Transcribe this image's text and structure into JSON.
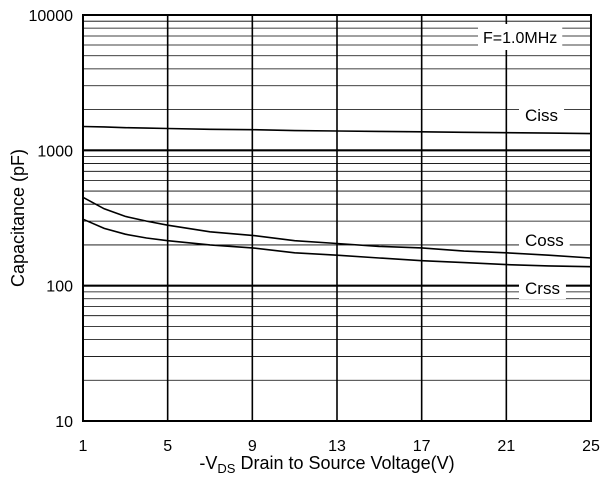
{
  "chart_data": {
    "type": "line",
    "xlabel_prefix": "-V",
    "xlabel_subscript": "DS",
    "xlabel_rest": " Drain to Source Voltage(V)",
    "ylabel": "Capacitance (pF)",
    "annotation": "F=1.0MHz",
    "x_scale": "linear",
    "y_scale": "log",
    "xlim": [
      1,
      25
    ],
    "ylim": [
      10,
      10000
    ],
    "x_ticks": [
      1,
      5,
      9,
      13,
      17,
      21,
      25
    ],
    "y_ticks": [
      10,
      100,
      1000,
      10000
    ],
    "grid": true,
    "series": [
      {
        "name": "Ciss",
        "x": [
          1,
          2,
          3,
          4,
          5,
          7,
          9,
          11,
          13,
          15,
          17,
          19,
          21,
          23,
          25
        ],
        "values": [
          1500,
          1490,
          1470,
          1460,
          1450,
          1430,
          1420,
          1400,
          1390,
          1380,
          1370,
          1360,
          1350,
          1340,
          1330
        ]
      },
      {
        "name": "Coss",
        "x": [
          1,
          2,
          3,
          4,
          5,
          7,
          9,
          11,
          13,
          15,
          17,
          19,
          21,
          23,
          25
        ],
        "values": [
          450,
          370,
          325,
          300,
          280,
          250,
          235,
          215,
          205,
          195,
          190,
          180,
          175,
          168,
          160
        ]
      },
      {
        "name": "Crss",
        "x": [
          1,
          2,
          3,
          4,
          5,
          7,
          9,
          11,
          13,
          15,
          17,
          19,
          21,
          23,
          25
        ],
        "values": [
          310,
          265,
          240,
          225,
          215,
          200,
          190,
          175,
          168,
          160,
          153,
          148,
          143,
          140,
          138
        ]
      }
    ]
  }
}
